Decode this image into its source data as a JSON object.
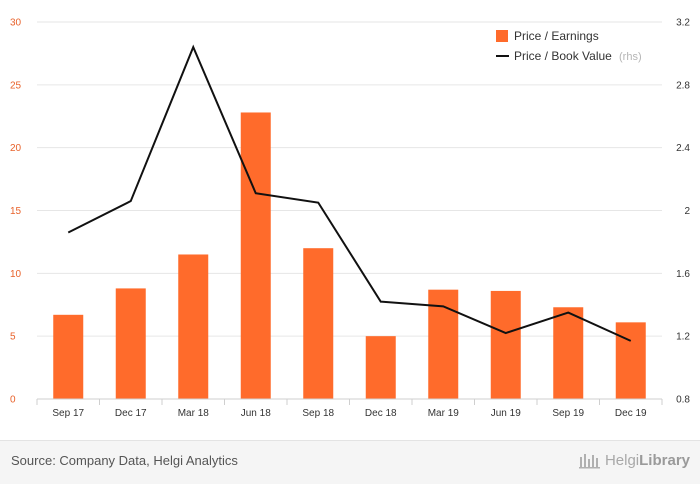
{
  "chart_data": {
    "type": "bar",
    "categories": [
      "Sep 17",
      "Dec 17",
      "Mar 18",
      "Jun 18",
      "Sep 18",
      "Dec 18",
      "Mar 19",
      "Jun 19",
      "Sep 19",
      "Dec 19"
    ],
    "series": [
      {
        "name": "Price / Earnings",
        "type": "bar",
        "axis": "left",
        "color": "#ff6b2b",
        "values": [
          6.7,
          8.8,
          11.5,
          22.8,
          12.0,
          5.0,
          8.7,
          8.6,
          7.3,
          6.1
        ]
      },
      {
        "name": "Price / Book Value",
        "type": "line",
        "axis": "right",
        "color": "#111111",
        "values": [
          1.86,
          2.06,
          3.04,
          2.11,
          2.05,
          1.42,
          1.39,
          1.22,
          1.35,
          1.17
        ]
      }
    ],
    "left_axis": {
      "ylim": [
        0,
        30
      ],
      "ticks": [
        "0",
        "5",
        "10",
        "15",
        "20",
        "25",
        "30"
      ]
    },
    "right_axis": {
      "ylim": [
        0.8,
        3.2
      ],
      "ticks": [
        "0.8",
        "1.2",
        "1.6",
        "2",
        "2.4",
        "2.8",
        "3.2"
      ]
    },
    "legend": {
      "position": "top-right",
      "items": [
        {
          "label": "Price / Earnings",
          "note": ""
        },
        {
          "label": "Price / Book Value",
          "note": "(rhs)"
        }
      ]
    },
    "grid": true
  },
  "footer": {
    "source": "Source: Company Data, Helgi Analytics",
    "brand_part1": "Helgi",
    "brand_part2": "Library"
  },
  "colors": {
    "bar": "#ff6b2b",
    "line": "#111111",
    "left_tick": "#e8622b"
  }
}
